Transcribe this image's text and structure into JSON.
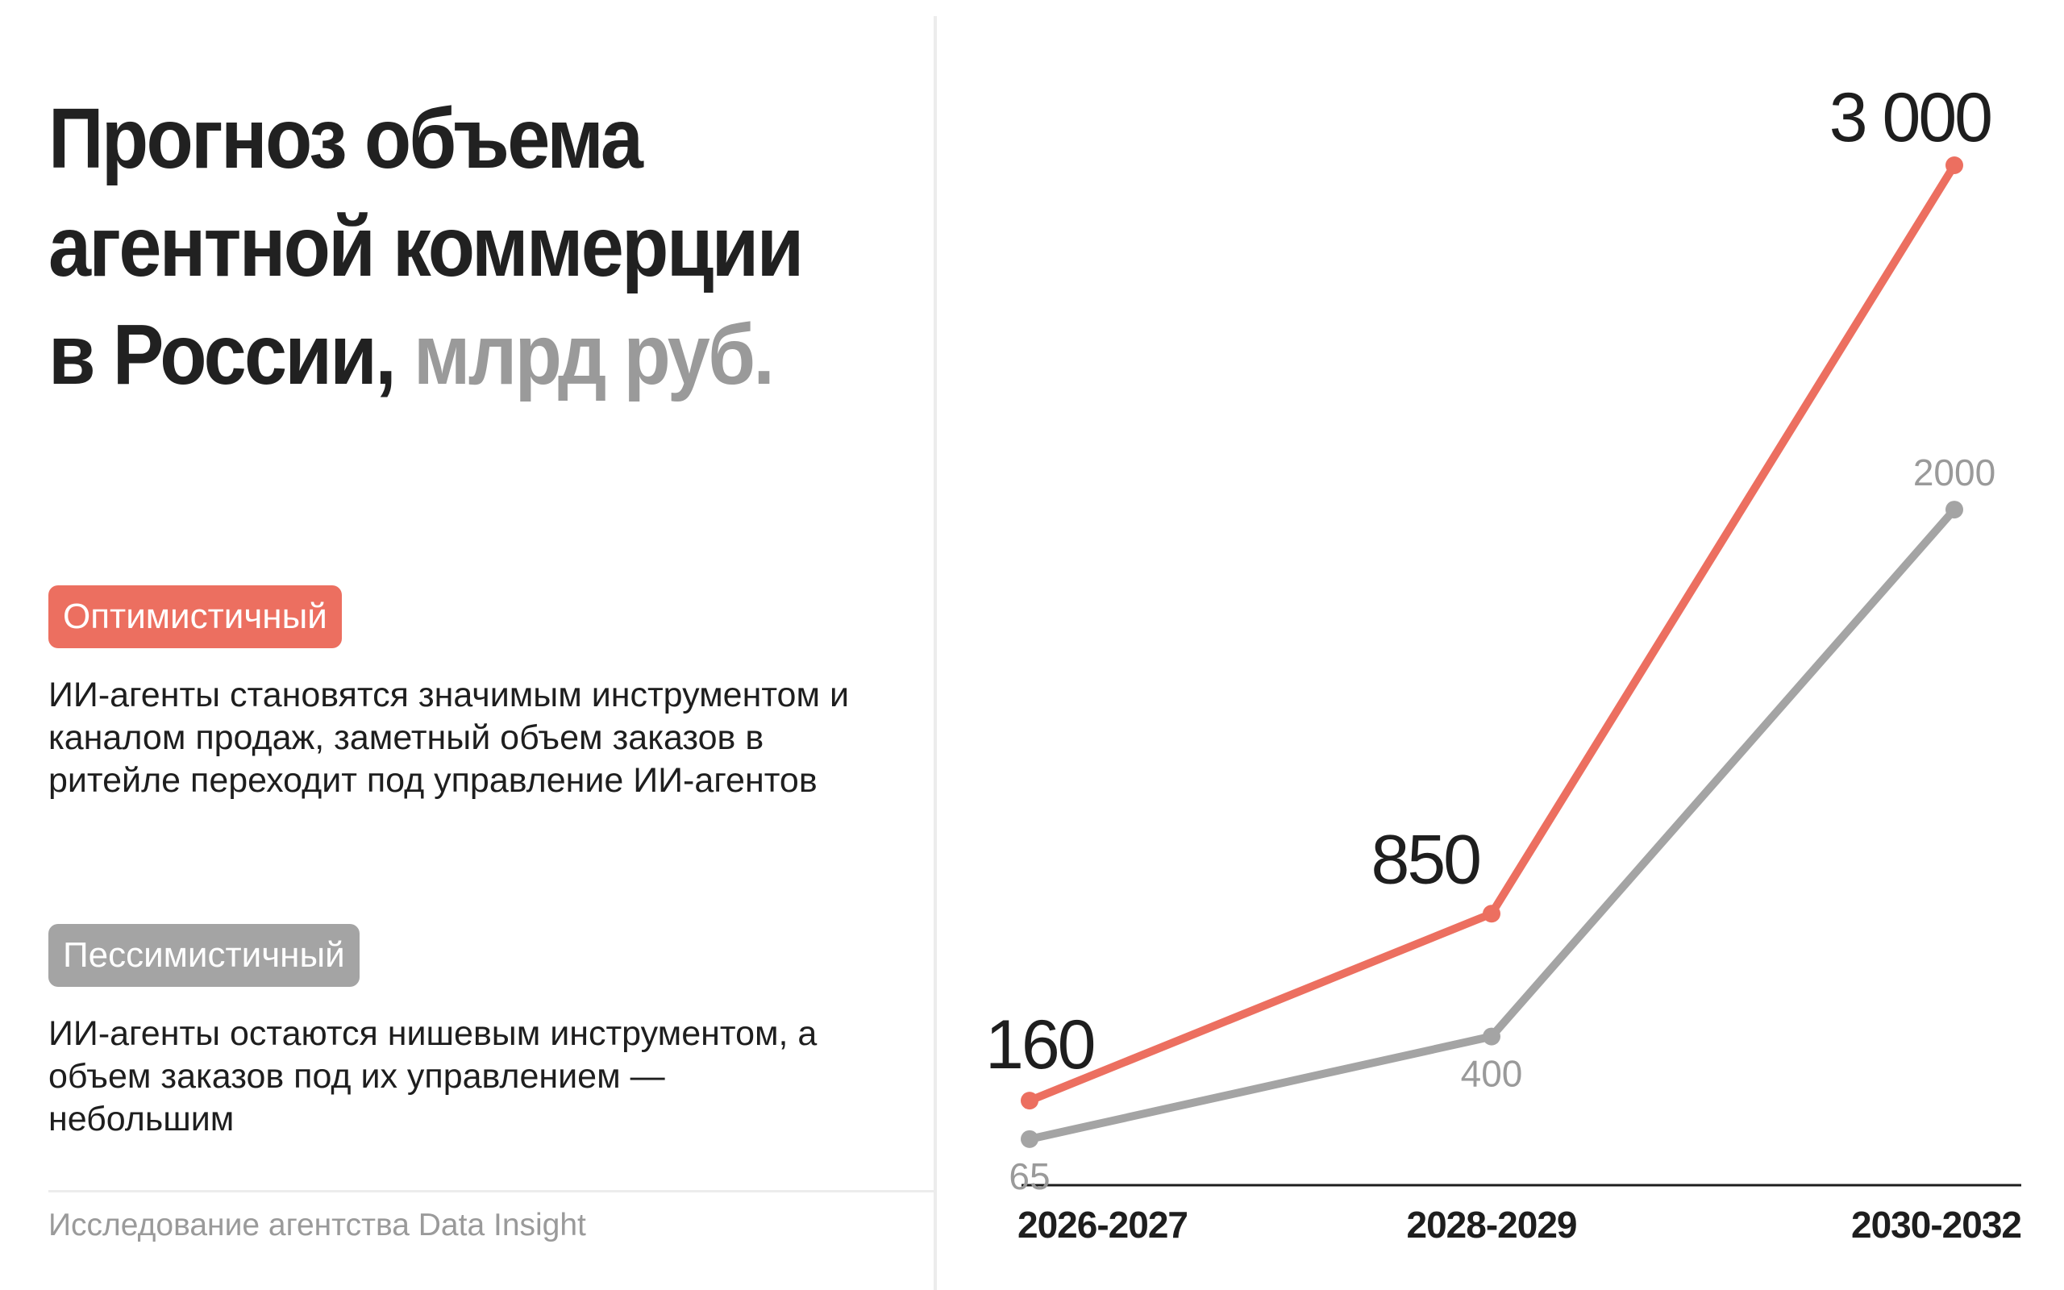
{
  "header": {
    "title": "Прогноз объема агентной коммерции в России,",
    "unit": "млрд руб."
  },
  "scenarios": {
    "optimistic": {
      "label": "Оптимистичный",
      "description": "ИИ-агенты становятся значимым инструментом и каналом продаж, заметный объем заказов в ритейле переходит под управление ИИ-агентов",
      "color": "#ec6f60"
    },
    "pessimistic": {
      "label": "Пессимистичный",
      "description": "ИИ-агенты остаются нишевым инструментом, а объем заказов под их управлением — небольшим",
      "color": "#a4a4a4"
    }
  },
  "footer": {
    "source": "Исследование агентства Data Insight"
  },
  "chart_data": {
    "type": "line",
    "categories": [
      "2026-2027",
      "2028-2029",
      "2030-2032"
    ],
    "series": [
      {
        "name": "Оптимистичный",
        "values": [
          160,
          850,
          3000
        ],
        "labels": [
          "160",
          "850",
          "3 000"
        ],
        "color": "#ec6f60"
      },
      {
        "name": "Пессимистичный",
        "values": [
          65,
          400,
          2000
        ],
        "labels": [
          "65",
          "400",
          "2000"
        ],
        "color": "#a4a4a4"
      }
    ],
    "ylim": [
      0,
      3000
    ],
    "grid": false
  }
}
